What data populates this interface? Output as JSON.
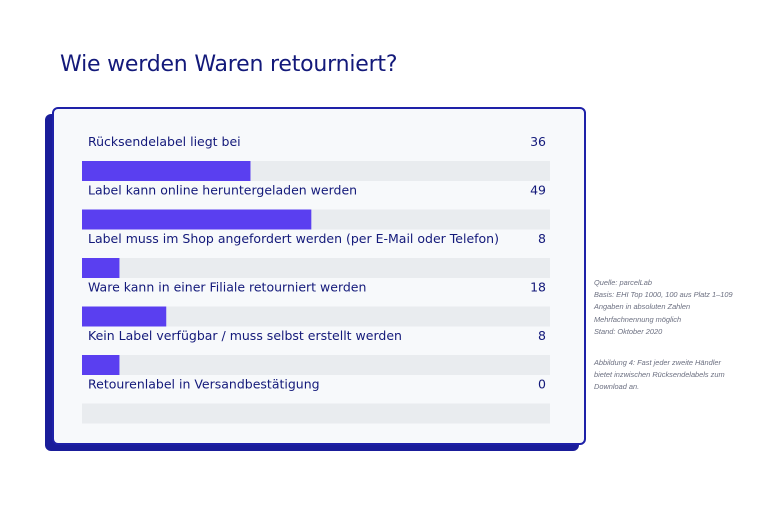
{
  "title": "Wie werden Waren retourniert?",
  "colors": {
    "bar": "#5a3ff0",
    "track": "#e9ecef",
    "text": "#13197a",
    "frame": "#1e21a8"
  },
  "chart_data": {
    "type": "bar",
    "orientation": "horizontal",
    "title": "Wie werden Waren retourniert?",
    "categories": [
      "Rücksendelabel liegt bei",
      "Label kann online heruntergeladen werden",
      "Label muss im Shop angefordert werden (per E-Mail oder Telefon)",
      "Ware kann in einer Filiale retourniert werden",
      "Kein Label verfügbar / muss selbst erstellt werden",
      "Retourenlabel in Versandbestätigung"
    ],
    "values": [
      36,
      49,
      8,
      18,
      8,
      0
    ],
    "xlim": [
      0,
      100
    ],
    "grid": false,
    "legend": "none"
  },
  "notes": {
    "source_lines": [
      "Quelle: parcelLab",
      "Basis: EHI Top 1000, 100 aus Platz 1–109",
      "Angaben in absoluten Zahlen",
      "Mehrfachnennung möglich",
      "Stand: Oktober 2020"
    ],
    "caption_lines": [
      "Abbildung 4: Fast jeder zweite Händler",
      "bietet inzwischen Rücksendelabels zum",
      "Download an."
    ]
  }
}
